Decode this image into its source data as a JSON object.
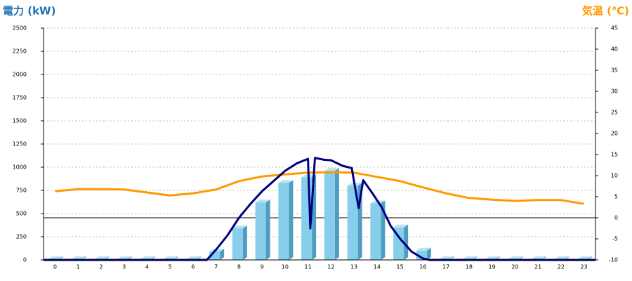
{
  "chart_data": {
    "type": "combo",
    "y_title": "電力 (kW)",
    "y2_title": "気温 (℃)",
    "categories": [
      "0",
      "1",
      "2",
      "3",
      "4",
      "5",
      "6",
      "7",
      "8",
      "9",
      "10",
      "11",
      "12",
      "13",
      "14",
      "15",
      "16",
      "17",
      "18",
      "19",
      "20",
      "21",
      "22",
      "23"
    ],
    "ylim": [
      0,
      2500
    ],
    "yticks": [
      0,
      250,
      500,
      750,
      1000,
      1250,
      1500,
      1750,
      2000,
      2250,
      2500
    ],
    "y2lim": [
      -10,
      45
    ],
    "y2ticks": [
      -10,
      -5,
      0,
      5,
      10,
      15,
      20,
      25,
      30,
      35,
      40,
      45
    ],
    "grid": true,
    "series": [
      {
        "type": "bar",
        "color": "#87ceeb",
        "values": [
          0,
          0,
          0,
          0,
          0,
          0,
          0,
          90,
          340,
          620,
          830,
          890,
          960,
          800,
          610,
          350,
          100,
          0,
          0,
          0,
          0,
          0,
          0,
          0
        ]
      },
      {
        "type": "line",
        "axis": "y2",
        "color": "#ff9900",
        "values": [
          6.3,
          6.8,
          6.8,
          6.7,
          6,
          5.3,
          5.8,
          6.7,
          8.7,
          9.8,
          10.3,
          10.7,
          10.8,
          10.7,
          9.7,
          8.7,
          7.2,
          5.8,
          4.7,
          4.3,
          4,
          4.2,
          4.2,
          3.3
        ]
      },
      {
        "type": "line",
        "color": "#000080",
        "x": [
          -0.5,
          6.6,
          7,
          7.5,
          8,
          8.5,
          9,
          9.5,
          10,
          10.5,
          11,
          11.1,
          11.3,
          11.7,
          12,
          12.5,
          12.9,
          13.2,
          13.4,
          13.8,
          14.2,
          14.6,
          15,
          15.5,
          16,
          16.3,
          23.5
        ],
        "values": [
          0,
          0,
          110,
          265,
          455,
          605,
          740,
          850,
          960,
          1040,
          1090,
          340,
          1100,
          1080,
          1075,
          1015,
          990,
          560,
          860,
          720,
          570,
          365,
          230,
          90,
          15,
          0,
          0
        ]
      }
    ]
  }
}
